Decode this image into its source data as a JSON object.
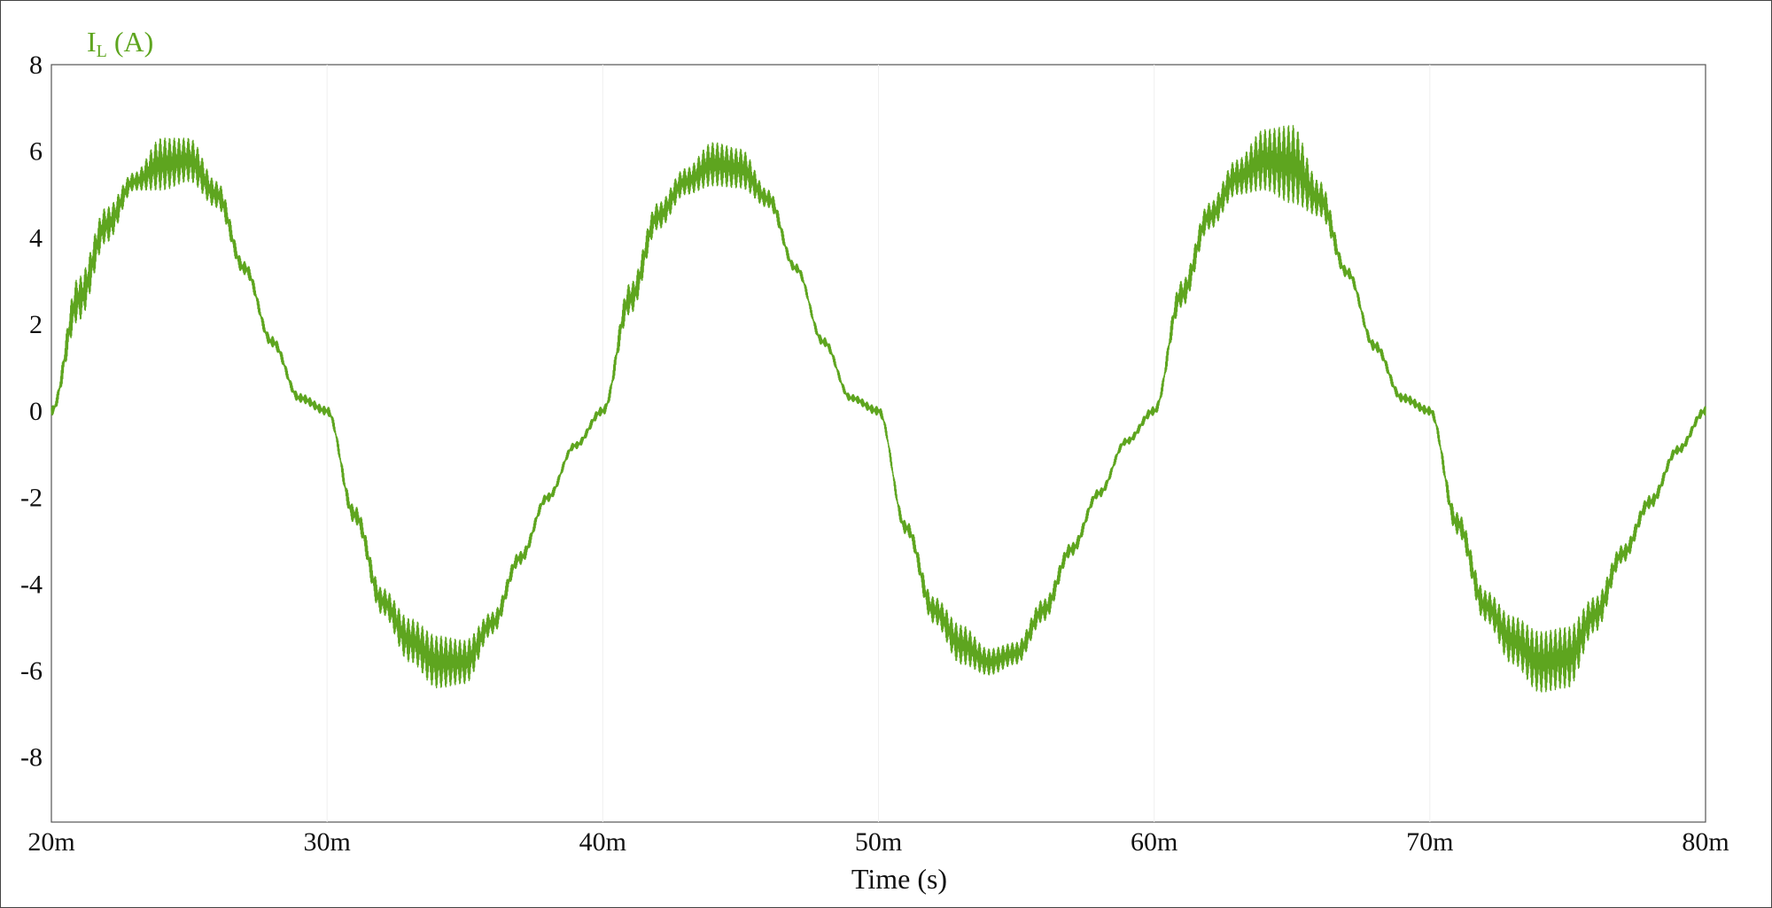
{
  "chart_data": {
    "type": "line",
    "xlabel": "Time (s)",
    "x_unit_suffix": "m",
    "xlim": [
      20,
      80
    ],
    "ylim": [
      -9.5,
      8
    ],
    "x_ticks": [
      20,
      30,
      40,
      50,
      60,
      70,
      80
    ],
    "x_tick_labels": [
      "20m",
      "30m",
      "40m",
      "50m",
      "60m",
      "70m",
      "80m"
    ],
    "y_ticks": [
      8,
      6,
      4,
      2,
      0,
      -2,
      -4,
      -6,
      -8
    ],
    "y_tick_labels": [
      "8",
      "6",
      "4",
      "2",
      "0",
      "-2",
      "-4",
      "-6",
      "-8"
    ],
    "grid": true,
    "series": [
      {
        "name": "IL (A)",
        "label_main": "I",
        "label_sub": "L",
        "label_rest": " (A)",
        "color": "#5ea51f",
        "description_hidden": false,
        "frequency_hz": 50,
        "x": [
          20,
          21,
          22,
          23,
          24,
          25,
          26,
          27,
          28,
          29,
          30,
          31,
          32,
          33,
          34,
          35,
          36,
          37,
          38,
          39,
          40,
          41,
          42,
          43,
          44,
          45,
          46,
          47,
          48,
          49,
          50,
          51,
          52,
          53,
          54,
          55,
          56,
          57,
          58,
          59,
          60,
          61,
          62,
          63,
          64,
          65,
          66,
          67,
          68,
          69,
          70,
          71,
          72,
          73,
          74,
          75,
          76,
          77,
          78,
          79,
          80
        ],
        "y": [
          0,
          2.6,
          4.3,
          5.3,
          5.7,
          5.8,
          5.0,
          3.3,
          1.6,
          0.3,
          0,
          -2.4,
          -4.4,
          -5.3,
          -5.8,
          -5.8,
          -4.9,
          -3.4,
          -2.0,
          -0.8,
          0,
          2.6,
          4.5,
          5.3,
          5.7,
          5.6,
          4.9,
          3.3,
          1.6,
          0.3,
          0,
          -2.7,
          -4.6,
          -5.4,
          -5.8,
          -5.6,
          -4.6,
          -3.2,
          -1.9,
          -0.7,
          0,
          2.7,
          4.5,
          5.4,
          5.8,
          5.7,
          4.9,
          3.2,
          1.5,
          0.3,
          0,
          -2.6,
          -4.5,
          -5.3,
          -5.8,
          -5.7,
          -4.7,
          -3.3,
          -2.1,
          -0.9,
          0
        ],
        "ripple_amplitude": [
          0.1,
          0.5,
          0.4,
          0.2,
          0.6,
          0.5,
          0.3,
          0.15,
          0.12,
          0.1,
          0.1,
          0.2,
          0.3,
          0.5,
          0.6,
          0.5,
          0.25,
          0.15,
          0.1,
          0.08,
          0.1,
          0.35,
          0.3,
          0.3,
          0.5,
          0.45,
          0.2,
          0.1,
          0.1,
          0.08,
          0.1,
          0.15,
          0.3,
          0.45,
          0.3,
          0.25,
          0.25,
          0.15,
          0.1,
          0.08,
          0.1,
          0.3,
          0.3,
          0.4,
          0.7,
          0.9,
          0.4,
          0.12,
          0.12,
          0.1,
          0.1,
          0.25,
          0.35,
          0.55,
          0.7,
          0.7,
          0.4,
          0.2,
          0.15,
          0.1,
          0.1
        ]
      }
    ]
  }
}
